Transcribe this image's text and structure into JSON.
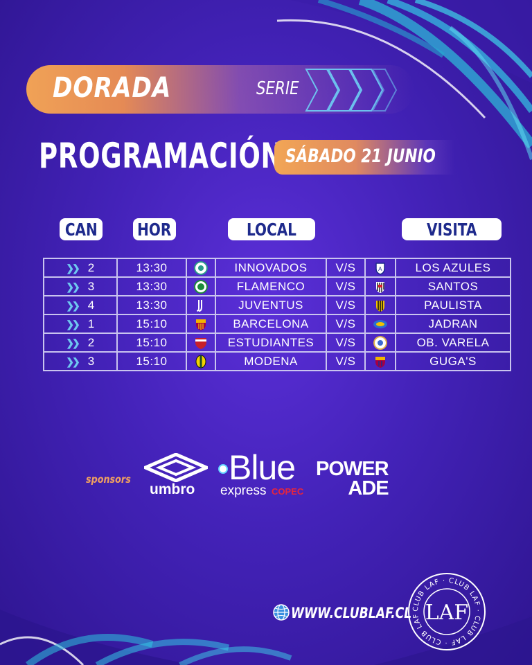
{
  "banner": {
    "series_name": "DORADA",
    "series_label": "SERIE",
    "title": "PROGRAMACIÓN",
    "date": "SÁBADO 21 JUNIO"
  },
  "table": {
    "headers": {
      "court": "CAN",
      "time": "HOR",
      "home": "LOCAL",
      "away": "VISITA"
    },
    "vs_label": "V/S",
    "rows": [
      {
        "court": "2",
        "time": "13:30",
        "home": "INNOVADOS",
        "away": "LOS AZULES",
        "home_crest": "innovados-crest",
        "away_crest": "los-azules-crest"
      },
      {
        "court": "3",
        "time": "13:30",
        "home": "FLAMENCO",
        "away": "SANTOS",
        "home_crest": "flamenco-crest",
        "away_crest": "santos-crest"
      },
      {
        "court": "4",
        "time": "13:30",
        "home": "JUVENTUS",
        "away": "PAULISTA",
        "home_crest": "juventus-crest",
        "away_crest": "paulista-crest"
      },
      {
        "court": "1",
        "time": "15:10",
        "home": "BARCELONA",
        "away": "JADRAN",
        "home_crest": "barcelona-crest",
        "away_crest": "jadran-crest"
      },
      {
        "court": "2",
        "time": "15:10",
        "home": "ESTUDIANTES",
        "away": "OB. VARELA",
        "home_crest": "estudiantes-crest",
        "away_crest": "ob-varela-crest"
      },
      {
        "court": "3",
        "time": "15:10",
        "home": "MODENA",
        "away": "GUGA'S",
        "home_crest": "modena-crest",
        "away_crest": "gugas-crest"
      }
    ]
  },
  "sponsors": {
    "label": "sponsors",
    "umbro": "umbro",
    "blue_main": "Blue",
    "blue_sub": "express",
    "blue_brand": "COPEC",
    "powerade_1": "POWER",
    "powerade_2": "ADE"
  },
  "footer": {
    "website": "WWW.CLUBLAF.CL",
    "seal_text": "CLUB LAF · CLUB LAF · CLUB LAF · CLUB LAF ·",
    "seal_monogram": "LAF"
  },
  "colors": {
    "background": "#4322b8",
    "accent_orange": "#f0a256",
    "header_text": "#1e2a8c",
    "arrow": "#6fc8f0"
  }
}
